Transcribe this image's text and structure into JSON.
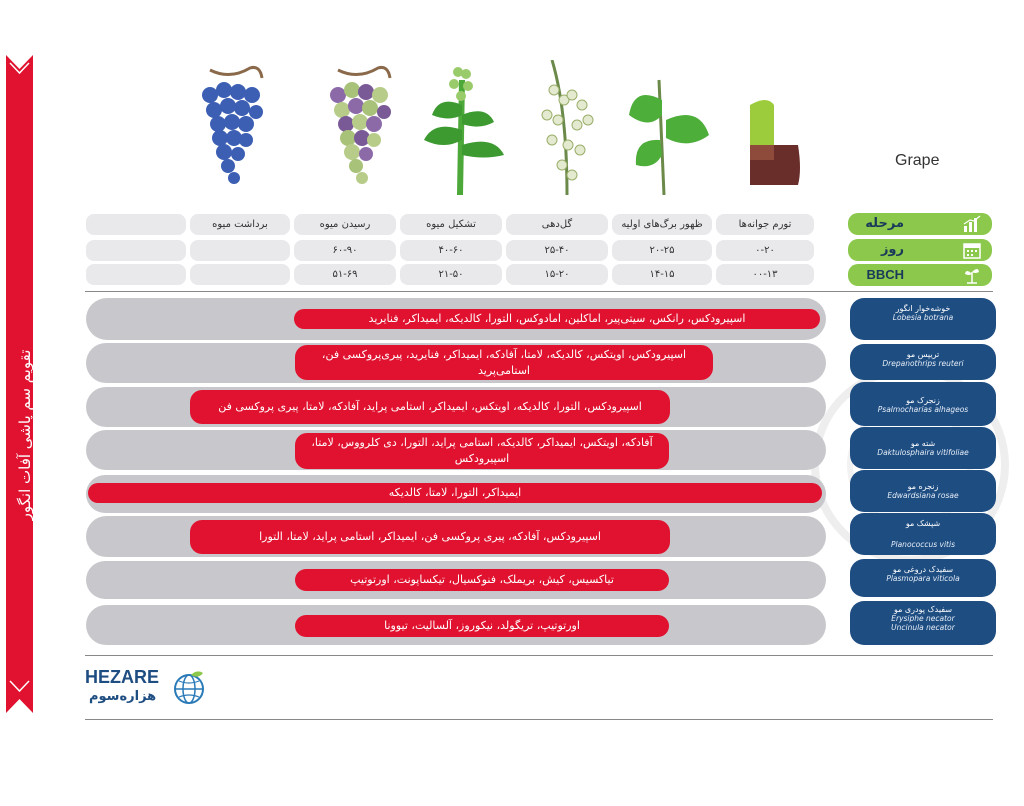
{
  "banner": {
    "title": "تقویم سم پاشی آفات انگور"
  },
  "crop_label": "Grape",
  "stages": [
    "تورم جوانه‌ها",
    "ظهور برگ‌های اولیه",
    "گل‌دهی",
    "تشکیل میوه",
    "رسیدن میوه",
    "برداشت میوه"
  ],
  "days": [
    "۰-۲۰",
    "۲۰-۲۵",
    "۲۵-۴۰",
    "۴۰-۶۰",
    "۶۰-۹۰",
    ""
  ],
  "bbch": [
    "۰۰-۱۳",
    "۱۴-۱۵",
    "۱۵-۲۰",
    "۲۱-۵۰",
    "۵۱-۶۹",
    ""
  ],
  "header_labels": {
    "stage": "مرحله",
    "day": "روز",
    "bbch": "BBCH"
  },
  "pests": [
    {
      "fa": "خوشه‌خوار انگور",
      "la": "Lobesia botrana",
      "products": "اسپیرودکس، رانکس، سیتی‌پیر، اماکلین، امادوکس، التورا، کالدیکه، ایمیداکر، فنایرید"
    },
    {
      "fa": "تریپس مو",
      "la": "Drepanothrips reuteri",
      "products": "اسپیرودکس، اویتکس، کالدیکه، لامتا، آفادکه، ایمیداکر، فنایرید، پیری‌پروکسی فن، استامی‌پرید"
    },
    {
      "fa": "زنجرک مو",
      "la": "Psalmocharias alhageos",
      "products": "اسپیرودکس، التورا، کالدیکه، اویتکس، ایمیداکر، استامی پراید، آفادکه، لامتا، پیری پروکسی فن"
    },
    {
      "fa": "شته مو",
      "la": "Daktulosphaira vitifoliae",
      "products": "آفادکه، اویتکس، ایمیداکر، کالدیکه، استامی پراید، التورا، دی کلرووس، لامتا، اسپیرودکس"
    },
    {
      "fa": "زنجره مو",
      "la": "Edwardsiana rosae",
      "products": "ایمیداکر، التورا، لامتا، کالدیکه"
    },
    {
      "fa": "شپشک مو",
      "la": "Planococcus vitis",
      "products": "اسپیرودکس، آفادکه، پیری پروکسی فن، ایمیداکر، استامی پراید، لامتا، التورا"
    },
    {
      "fa": "سفیدک دروغی مو",
      "la": "Plasmopara viticola",
      "products": "تیاکسیس، کیش، بریملک، فنوکسیال، تیکسا‌پونت، اورتوتیپ"
    },
    {
      "fa": "سفیدک پودری مو",
      "la": "Erysiphe necator",
      "la2": "Uncinula necator",
      "products": "اورتوتیپ، تریگولد، نیکوروز، آلسالیت، تیوونا"
    }
  ],
  "logo": {
    "latin": "HEZARE",
    "persian": "هزاره‌سوم"
  },
  "colors": {
    "green": "#8cc84b",
    "navy": "#1e4d82",
    "red": "#e0122f",
    "grey": "#c8c8cc"
  }
}
